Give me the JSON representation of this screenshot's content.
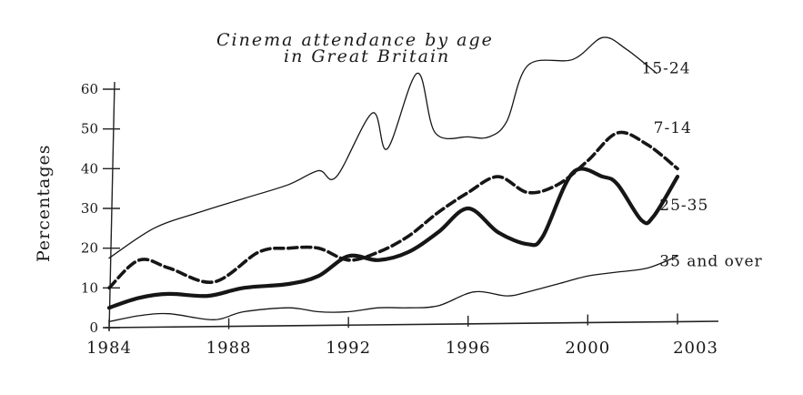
{
  "chart_data": {
    "type": "line",
    "title": "Cinema attendance by age in Great Britain",
    "title_lines": [
      "Cinema attendance by age",
      "in Great Britain"
    ],
    "xlabel": "",
    "ylabel": "Percentages",
    "xlim": [
      1984,
      2003
    ],
    "ylim": [
      0,
      65
    ],
    "x_ticks": [
      "1984",
      "1988",
      "1992",
      "1996",
      "2000",
      "2003"
    ],
    "x_tick_values": [
      1984,
      1988,
      1992,
      1996,
      2000,
      2003
    ],
    "y_ticks": [
      "0",
      "10",
      "20",
      "30",
      "40",
      "50",
      "60"
    ],
    "y_tick_values": [
      0,
      10,
      20,
      30,
      40,
      50,
      60
    ],
    "grid": false,
    "legend": "none (series labelled at line ends)",
    "series": [
      {
        "name": "15-24",
        "style": "thin",
        "label_pos": [
          2001.8,
          64
        ],
        "points": [
          [
            1984,
            17.5
          ],
          [
            1985.5,
            25
          ],
          [
            1987,
            29
          ],
          [
            1988.5,
            32.5
          ],
          [
            1990,
            36
          ],
          [
            1991,
            39.5
          ],
          [
            1991.6,
            38
          ],
          [
            1992.8,
            54
          ],
          [
            1993.3,
            45
          ],
          [
            1994.3,
            64
          ],
          [
            1994.9,
            49
          ],
          [
            1996,
            48
          ],
          [
            1996.7,
            48
          ],
          [
            1997.3,
            52
          ],
          [
            1998,
            66
          ],
          [
            1999.5,
            67.5
          ],
          [
            2000.5,
            73
          ],
          [
            2001.3,
            70
          ],
          [
            2002.3,
            64
          ]
        ]
      },
      {
        "name": "7-14",
        "style": "dashed",
        "label_pos": [
          2002.2,
          49
        ],
        "points": [
          [
            1984,
            10
          ],
          [
            1985,
            17
          ],
          [
            1986,
            15
          ],
          [
            1987.5,
            11.5
          ],
          [
            1989,
            19
          ],
          [
            1990,
            20
          ],
          [
            1991,
            20
          ],
          [
            1992,
            17
          ],
          [
            1993,
            19
          ],
          [
            1994,
            23
          ],
          [
            1995,
            29
          ],
          [
            1996,
            34
          ],
          [
            1997,
            38
          ],
          [
            1998,
            34
          ],
          [
            1999,
            36
          ],
          [
            2000,
            42
          ],
          [
            2001,
            49
          ],
          [
            2002,
            46
          ],
          [
            2003,
            40
          ]
        ]
      },
      {
        "name": "25-35",
        "style": "thick",
        "label_pos": [
          2002.4,
          29.5
        ],
        "points": [
          [
            1984,
            5
          ],
          [
            1985,
            7.5
          ],
          [
            1986,
            8.5
          ],
          [
            1987.3,
            8
          ],
          [
            1988.5,
            10
          ],
          [
            1990,
            11
          ],
          [
            1991,
            13
          ],
          [
            1992,
            18
          ],
          [
            1993,
            17
          ],
          [
            1994,
            19
          ],
          [
            1995,
            24
          ],
          [
            1996,
            30
          ],
          [
            1997,
            24
          ],
          [
            1998,
            21
          ],
          [
            1998.5,
            23
          ],
          [
            1999.5,
            39
          ],
          [
            2000.5,
            38
          ],
          [
            2001,
            36
          ],
          [
            2001.8,
            27
          ],
          [
            2002.2,
            28
          ],
          [
            2003,
            38
          ]
        ]
      },
      {
        "name": "35 and over",
        "style": "thin",
        "label_pos": [
          2002.4,
          15.5
        ],
        "points": [
          [
            1984,
            1.5
          ],
          [
            1985,
            3
          ],
          [
            1986,
            3.5
          ],
          [
            1987.5,
            2
          ],
          [
            1988.5,
            4
          ],
          [
            1990,
            5
          ],
          [
            1991,
            4
          ],
          [
            1992,
            4
          ],
          [
            1993,
            5
          ],
          [
            1994,
            5
          ],
          [
            1995,
            5.5
          ],
          [
            1996.2,
            9
          ],
          [
            1997.3,
            8
          ],
          [
            1998,
            9
          ],
          [
            1999,
            11
          ],
          [
            2000,
            13
          ],
          [
            2001,
            14
          ],
          [
            2002,
            15
          ],
          [
            2003,
            18
          ]
        ]
      }
    ]
  }
}
